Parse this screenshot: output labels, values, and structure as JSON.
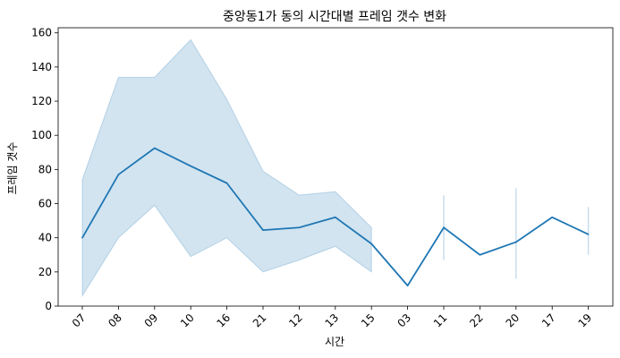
{
  "chart_data": {
    "type": "line",
    "title": "중앙동1가 동의 시간대별 프레임 갯수 변화",
    "xlabel": "시간",
    "ylabel": "프레임 갯수",
    "categories": [
      "07",
      "08",
      "09",
      "10",
      "16",
      "21",
      "12",
      "13",
      "15",
      "03",
      "11",
      "22",
      "20",
      "17",
      "19"
    ],
    "series": [
      {
        "values": [
          40,
          77,
          92.5,
          82,
          72,
          44.5,
          46,
          52,
          36.5,
          12,
          46,
          30,
          37.5,
          52,
          42
        ],
        "ci_lower": [
          6,
          40,
          59,
          29,
          40,
          20,
          27,
          35,
          20,
          null,
          27,
          null,
          16,
          null,
          30
        ],
        "ci_upper": [
          74,
          134,
          134,
          156,
          121,
          79,
          65,
          67,
          46,
          null,
          65,
          null,
          69,
          null,
          58
        ],
        "color": "#1f77b4",
        "band_color": "#1f77b4"
      }
    ],
    "ylim": [
      0,
      163
    ],
    "yticks": [
      0,
      20,
      40,
      60,
      80,
      100,
      120,
      140,
      160
    ],
    "grid": false,
    "legend": "none"
  }
}
